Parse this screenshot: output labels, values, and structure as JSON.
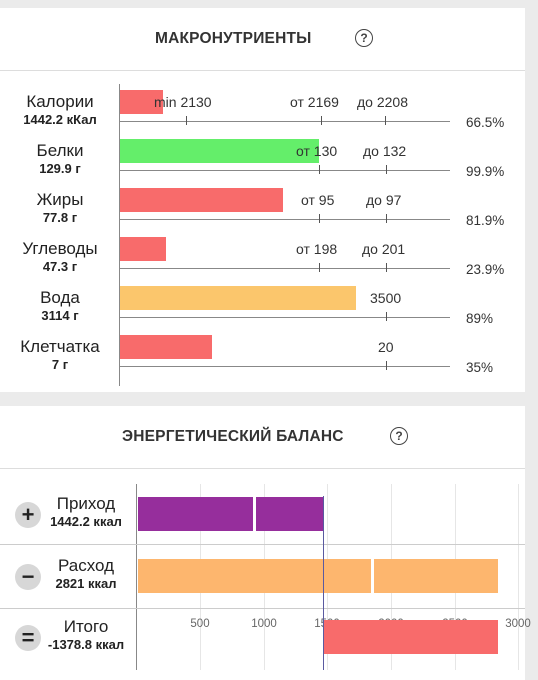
{
  "macro": {
    "title": "МАКРОНУТРИЕНТЫ",
    "help_icon": "?",
    "rows": [
      {
        "name": "Калории",
        "value": "1442.2 кКал",
        "t1": "min 2130",
        "t2": "от 2169",
        "t3": "до 2208",
        "pct": "66.5%",
        "color": "#f86b6b"
      },
      {
        "name": "Белки",
        "value": "129.9 г",
        "t1": "от 130",
        "t2": "до 132",
        "pct": "99.9%",
        "color": "#64ee6a"
      },
      {
        "name": "Жиры",
        "value": "77.8 г",
        "t1": "от 95",
        "t2": "до 97",
        "pct": "81.9%",
        "color": "#f86b6b"
      },
      {
        "name": "Углеводы",
        "value": "47.3 г",
        "t1": "от 198",
        "t2": "до 201",
        "pct": "23.9%",
        "color": "#f86b6b"
      },
      {
        "name": "Вода",
        "value": "3114 г",
        "t1": "3500",
        "pct": "89%",
        "color": "#fbc66c"
      },
      {
        "name": "Клетчатка",
        "value": "7 г",
        "t1": "20",
        "pct": "35%",
        "color": "#f86b6b"
      }
    ]
  },
  "energy": {
    "title": "ЭНЕРГЕТИЧЕСКИЙ БАЛАНС",
    "help_icon": "?",
    "rows": [
      {
        "sign": "+",
        "name": "Приход",
        "value": "1442.2 ккал",
        "amount": 1442.2,
        "color": "#962e9c"
      },
      {
        "sign": "−",
        "name": "Расход",
        "value": "2821 ккал",
        "amount": 2821,
        "color": "#fdb66e"
      },
      {
        "sign": "=",
        "name": "Итого",
        "value": "-1378.8 ккал",
        "amount": -1378.8,
        "color": "#f86b6b"
      }
    ],
    "x_ticks": [
      "500",
      "1000",
      "1500",
      "2000",
      "2500",
      "3000"
    ]
  }
}
